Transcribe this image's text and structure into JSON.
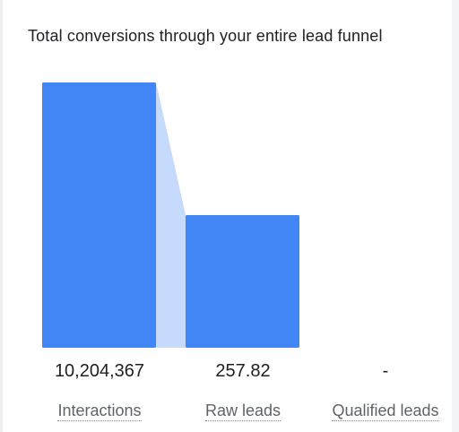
{
  "card": {
    "title": "Total conversions through your entire lead funnel"
  },
  "colors": {
    "bar": "#4285f4",
    "connector": "#c6dafc"
  },
  "chart_data": {
    "type": "bar",
    "categories": [
      "Interactions",
      "Raw leads",
      "Qualified leads"
    ],
    "value_labels": [
      "10,204,367",
      "257.82",
      "-"
    ],
    "relative_heights": [
      1.0,
      0.5,
      0
    ]
  }
}
